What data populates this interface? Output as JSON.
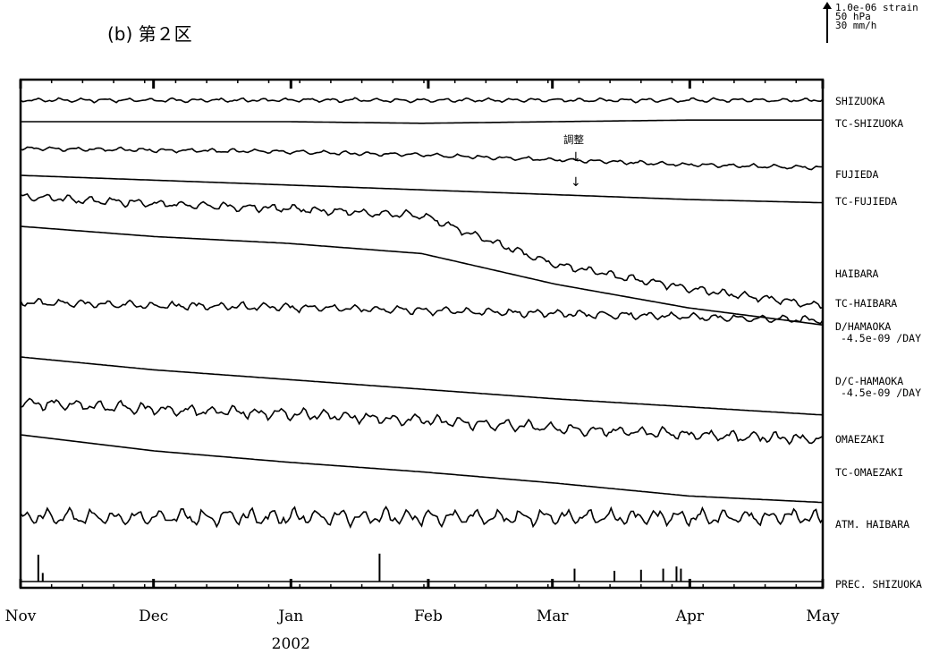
{
  "title": "(b)  第２区",
  "scale_legend": [
    "1.0e-06 strain",
    "50 hPa",
    "30 mm/h"
  ],
  "annotation": "調整",
  "chart_data": {
    "type": "line",
    "title": "(b)  第２区",
    "x_range": [
      "2001-11-01",
      "2002-05-01"
    ],
    "x_ticks": [
      "Nov",
      "Dec",
      "Jan",
      "Feb",
      "Mar",
      "Apr",
      "May"
    ],
    "x_tick_dates": [
      "2001-11-01",
      "2001-12-01",
      "2002-01-01",
      "2002-02-01",
      "2002-03-01",
      "2002-04-01",
      "2002-05-01"
    ],
    "year_label": "2002",
    "grid": false,
    "series": [
      {
        "name": "SHIZUOKA",
        "offset": [
          0,
          0,
          0,
          0,
          0,
          0,
          0
        ]
      },
      {
        "name": "TC-SHIZUOKA",
        "offset": [
          0,
          0,
          0,
          -0.05,
          0,
          0.05,
          0.05
        ]
      },
      {
        "name": "FUJIEDA",
        "offset": [
          0,
          -0.05,
          -0.1,
          -0.2,
          -0.35,
          -0.5,
          -0.6
        ]
      },
      {
        "name": "TC-FUJIEDA",
        "offset": [
          0,
          -0.15,
          -0.3,
          -0.45,
          -0.6,
          -0.75,
          -0.85
        ]
      },
      {
        "name": "HAIBARA",
        "offset": [
          0,
          -0.2,
          -0.35,
          -0.55,
          -2.0,
          -2.7,
          -3.2
        ]
      },
      {
        "name": "TC-HAIBARA",
        "offset": [
          0,
          -0.3,
          -0.5,
          -0.8,
          -1.7,
          -2.4,
          -2.9
        ]
      },
      {
        "name": "D/HAMAOKA",
        "sub": "-4.5e-09 /DAY",
        "offset": [
          0,
          -0.1,
          -0.15,
          -0.25,
          -0.35,
          -0.45,
          -0.55
        ]
      },
      {
        "name": "D/C-HAMAOKA",
        "sub": "-4.5e-09 /DAY",
        "offset": [
          0,
          -0.4,
          -0.7,
          -1.0,
          -1.3,
          -1.55,
          -1.8
        ]
      },
      {
        "name": "OMAEZAKI",
        "offset": [
          0,
          -0.2,
          -0.35,
          -0.55,
          -0.8,
          -1.0,
          -1.15
        ]
      },
      {
        "name": "TC-OMAEZAKI",
        "offset": [
          0,
          -0.5,
          -0.85,
          -1.15,
          -1.5,
          -1.9,
          -2.1
        ]
      },
      {
        "name": "ATM. HAIBARA",
        "offset": [
          0,
          0,
          0,
          0,
          0,
          0,
          0
        ]
      },
      {
        "name": "PREC. SHIZUOKA",
        "offset": [
          0,
          0,
          0,
          0,
          0,
          0,
          0
        ]
      }
    ],
    "precip_spikes": [
      {
        "date": "2001-11-05",
        "value": 25
      },
      {
        "date": "2001-11-06",
        "value": 8
      },
      {
        "date": "2002-01-21",
        "value": 26
      },
      {
        "date": "2002-03-06",
        "value": 12
      },
      {
        "date": "2002-03-15",
        "value": 10
      },
      {
        "date": "2002-03-21",
        "value": 11
      },
      {
        "date": "2002-03-26",
        "value": 12
      },
      {
        "date": "2002-03-29",
        "value": 14
      },
      {
        "date": "2002-03-30",
        "value": 12
      }
    ]
  }
}
